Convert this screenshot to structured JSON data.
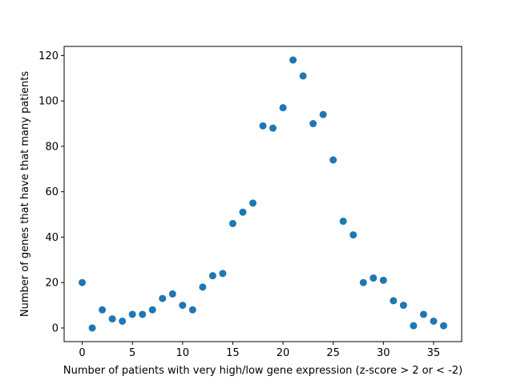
{
  "chart_data": {
    "type": "scatter",
    "title": "",
    "xlabel": "Number of patients with very high/low gene expression (z-score > 2 or < -2)",
    "ylabel": "Number of genes that have that many patients",
    "xlim": [
      -1.8,
      37.8
    ],
    "ylim": [
      -6,
      124
    ],
    "xticks": [
      0,
      5,
      10,
      15,
      20,
      25,
      30,
      35
    ],
    "yticks": [
      0,
      20,
      40,
      60,
      80,
      100,
      120
    ],
    "grid": false,
    "marker_color": "#1f77b4",
    "points": [
      {
        "x": 0,
        "y": 20
      },
      {
        "x": 1,
        "y": 0
      },
      {
        "x": 2,
        "y": 8
      },
      {
        "x": 3,
        "y": 4
      },
      {
        "x": 4,
        "y": 3
      },
      {
        "x": 5,
        "y": 6
      },
      {
        "x": 6,
        "y": 6
      },
      {
        "x": 7,
        "y": 8
      },
      {
        "x": 8,
        "y": 13
      },
      {
        "x": 9,
        "y": 15
      },
      {
        "x": 10,
        "y": 10
      },
      {
        "x": 11,
        "y": 8
      },
      {
        "x": 12,
        "y": 18
      },
      {
        "x": 13,
        "y": 23
      },
      {
        "x": 14,
        "y": 24
      },
      {
        "x": 15,
        "y": 46
      },
      {
        "x": 16,
        "y": 51
      },
      {
        "x": 17,
        "y": 55
      },
      {
        "x": 18,
        "y": 89
      },
      {
        "x": 19,
        "y": 88
      },
      {
        "x": 20,
        "y": 97
      },
      {
        "x": 21,
        "y": 118
      },
      {
        "x": 22,
        "y": 111
      },
      {
        "x": 23,
        "y": 90
      },
      {
        "x": 24,
        "y": 94
      },
      {
        "x": 25,
        "y": 74
      },
      {
        "x": 26,
        "y": 47
      },
      {
        "x": 27,
        "y": 41
      },
      {
        "x": 28,
        "y": 20
      },
      {
        "x": 29,
        "y": 22
      },
      {
        "x": 30,
        "y": 21
      },
      {
        "x": 31,
        "y": 12
      },
      {
        "x": 32,
        "y": 10
      },
      {
        "x": 33,
        "y": 1
      },
      {
        "x": 34,
        "y": 6
      },
      {
        "x": 35,
        "y": 3
      },
      {
        "x": 36,
        "y": 1
      }
    ]
  }
}
